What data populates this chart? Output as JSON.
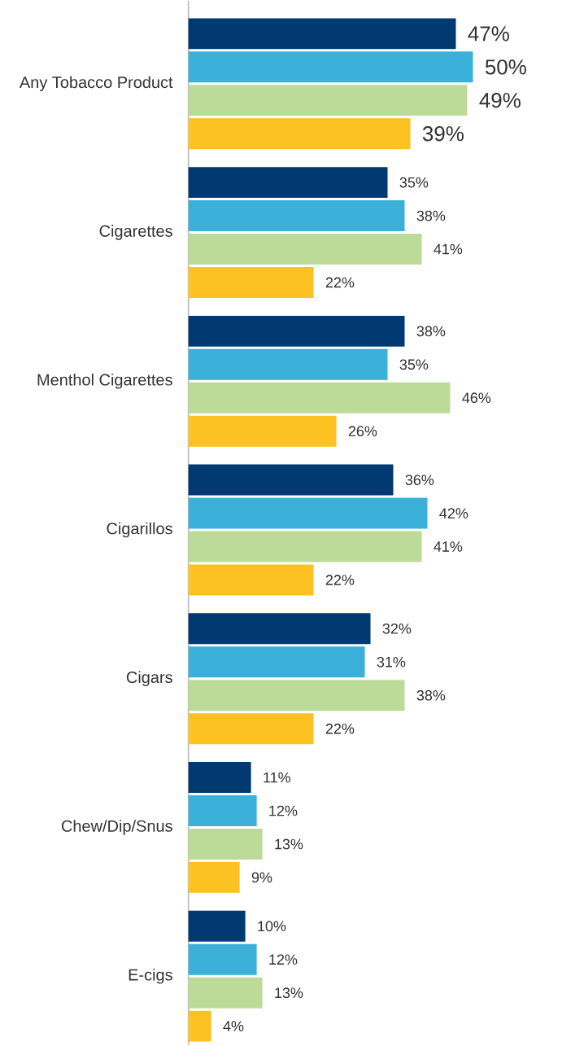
{
  "chart_data": {
    "type": "bar",
    "orientation": "horizontal",
    "categories": [
      "Any Tobacco Product",
      "Cigarettes",
      "Menthol Cigarettes",
      "Cigarillos",
      "Cigars",
      "Chew/Dip/Snus",
      "E-cigs"
    ],
    "series": [
      {
        "color": "#003a70",
        "values": [
          47,
          35,
          38,
          36,
          32,
          11,
          10
        ],
        "value_labels": [
          "47%",
          "35%",
          "38%",
          "36%",
          "32%",
          "11%",
          "10%"
        ]
      },
      {
        "color": "#3bb0d9",
        "values": [
          50,
          38,
          35,
          42,
          31,
          12,
          12
        ],
        "value_labels": [
          "50%",
          "38%",
          "35%",
          "42%",
          "31%",
          "12%",
          "12%"
        ]
      },
      {
        "color": "#bcdb98",
        "values": [
          49,
          41,
          46,
          41,
          38,
          13,
          13
        ],
        "value_labels": [
          "49%",
          "41%",
          "46%",
          "41%",
          "38%",
          "13%",
          "13%"
        ]
      },
      {
        "color": "#fdc122",
        "values": [
          39,
          22,
          26,
          22,
          22,
          9,
          4
        ],
        "value_labels": [
          "39%",
          "22%",
          "26%",
          "22%",
          "22%",
          "9%",
          "4%"
        ]
      }
    ]
  }
}
